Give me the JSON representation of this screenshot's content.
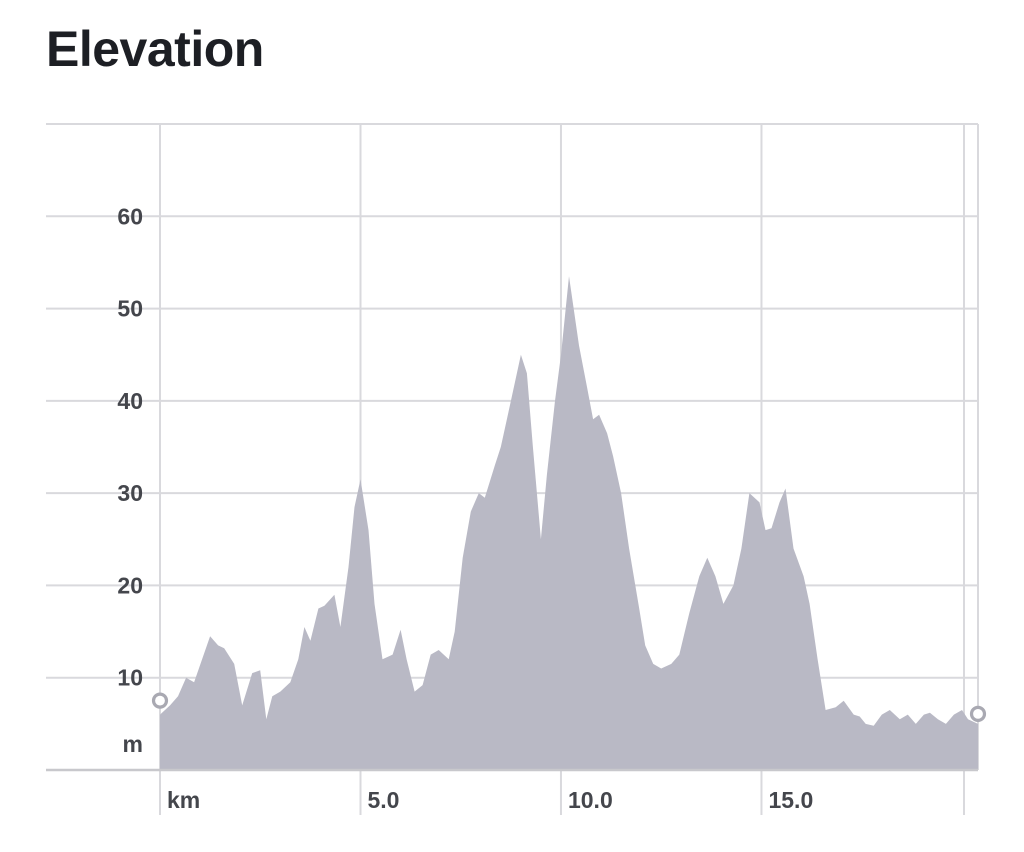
{
  "page": {
    "title": "Elevation"
  },
  "colors": {
    "area_fill": "#b9b9c5",
    "grid": "#d9d9dd",
    "axis": "#c8c8cc",
    "endpoint_marker": "#a9a9b2",
    "text": "#44464c"
  },
  "chart_data": {
    "type": "area",
    "title": "Elevation",
    "xlabel": "km",
    "ylabel": "m",
    "xlim": [
      0,
      20.4
    ],
    "ylim": [
      0,
      70
    ],
    "grid": true,
    "x_ticks": [
      {
        "value": 5,
        "label": "5.0"
      },
      {
        "value": 10,
        "label": "10.0"
      },
      {
        "value": 15,
        "label": "15.0"
      }
    ],
    "y_ticks": [
      {
        "value": 10,
        "label": "10"
      },
      {
        "value": 20,
        "label": "20"
      },
      {
        "value": 30,
        "label": "30"
      },
      {
        "value": 40,
        "label": "40"
      },
      {
        "value": 50,
        "label": "50"
      },
      {
        "value": 60,
        "label": "60"
      }
    ],
    "x_unit_label": "km",
    "y_unit_label": "m",
    "series": [
      {
        "x": [
          0,
          0.25,
          0.45,
          0.65,
          0.85,
          1.05,
          1.25,
          1.45,
          1.6,
          1.85,
          2.05,
          2.3,
          2.5,
          2.65,
          2.8,
          3.0,
          3.25,
          3.45,
          3.6,
          3.75,
          3.95,
          4.1,
          4.35,
          4.5,
          4.7,
          4.85,
          5.0,
          5.2,
          5.35,
          5.55,
          5.8,
          6.0,
          6.15,
          6.35,
          6.55,
          6.75,
          6.95,
          7.2,
          7.35,
          7.55,
          7.75,
          7.95,
          8.1,
          8.35,
          8.5,
          8.75,
          9.0,
          9.15,
          9.3,
          9.5,
          9.65,
          9.85,
          10.0,
          10.2,
          10.45,
          10.65,
          10.8,
          10.95,
          11.15,
          11.3,
          11.5,
          11.7,
          11.95,
          12.1,
          12.3,
          12.5,
          12.75,
          12.95,
          13.2,
          13.45,
          13.65,
          13.85,
          14.05,
          14.3,
          14.5,
          14.7,
          14.95,
          15.1,
          15.25,
          15.45,
          15.6,
          15.8,
          16.05,
          16.2,
          16.4,
          16.6,
          16.85,
          17.05,
          17.3,
          17.45,
          17.6,
          17.8,
          18.0,
          18.2,
          18.45,
          18.65,
          18.85,
          19.05,
          19.2,
          19.4,
          19.6,
          19.8,
          20.0,
          20.15,
          20.4
        ],
        "y": [
          6,
          7,
          8,
          10,
          9.5,
          12,
          14.5,
          13.5,
          13.2,
          11.5,
          7,
          10.5,
          10.8,
          5.5,
          8,
          8.5,
          9.5,
          12,
          15.5,
          14,
          17.5,
          17.8,
          19,
          15.5,
          22,
          28.5,
          31.5,
          26,
          18,
          12,
          12.5,
          15.2,
          12,
          8.5,
          9.2,
          12.5,
          13,
          12,
          15,
          23,
          28,
          30,
          29.5,
          33,
          35,
          40,
          45,
          43,
          35,
          25,
          32,
          40,
          45,
          53.5,
          46,
          41.5,
          38,
          38.5,
          36.5,
          34,
          30,
          24,
          17.5,
          13.5,
          11.5,
          11,
          11.5,
          12.5,
          17,
          21,
          23,
          21,
          18,
          20,
          24,
          30,
          29,
          26,
          26.2,
          29,
          30.5,
          24,
          21,
          18,
          12,
          6.5,
          6.8,
          7.5,
          6,
          5.8,
          5,
          4.8,
          6,
          6.5,
          5.5,
          6,
          5,
          6,
          6.2,
          5.5,
          5,
          6,
          6.5,
          5.5,
          5
        ]
      }
    ]
  }
}
